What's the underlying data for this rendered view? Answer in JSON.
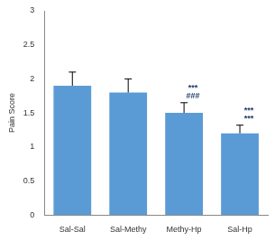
{
  "chart_data": {
    "type": "bar",
    "y_label": "Pain Score",
    "categories": [
      "Sal-Sal",
      "Sal-Methy",
      "Methy-Hp",
      "Sal-Hp"
    ],
    "values": [
      1.9,
      1.8,
      1.5,
      1.2
    ],
    "errors": [
      0.2,
      0.2,
      0.15,
      0.12
    ],
    "annotations": [
      null,
      null,
      [
        "***",
        "###"
      ],
      [
        "***",
        "***"
      ]
    ],
    "color": "#5b9bd5",
    "ylim": [
      0,
      3
    ],
    "yticks": [
      0,
      0.5,
      1,
      1.5,
      2,
      2.5,
      3
    ],
    "grid": false
  }
}
